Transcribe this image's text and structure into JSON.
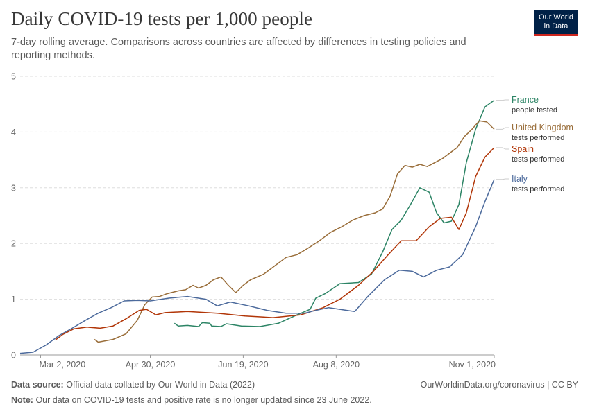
{
  "header": {
    "title": "Daily COVID-19 tests per 1,000 people",
    "subtitle": "7-day rolling average. Comparisons across countries are affected by differences in testing policies and reporting methods."
  },
  "logo": {
    "line1": "Our World",
    "line2": "in Data",
    "bg_color": "#002147",
    "accent_color": "#ce261e"
  },
  "footer": {
    "source_label": "Data source:",
    "source_text": "Official data collated by Our World in Data (2022)",
    "credit": "OurWorldinData.org/coronavirus | CC BY",
    "note_label": "Note:",
    "note_text": "Our data on COVID-19 tests and positive rate is no longer updated since 23 June 2022."
  },
  "chart_data": {
    "type": "line",
    "x_axis": {
      "type": "date",
      "range": [
        "2020-02-20",
        "2020-11-01"
      ],
      "ticks": [
        {
          "date": "2020-03-02",
          "label": "Mar 2, 2020"
        },
        {
          "date": "2020-04-30",
          "label": "Apr 30, 2020"
        },
        {
          "date": "2020-06-19",
          "label": "Jun 19, 2020"
        },
        {
          "date": "2020-08-08",
          "label": "Aug 8, 2020"
        },
        {
          "date": "2020-11-01",
          "label": "Nov 1, 2020"
        }
      ]
    },
    "y_axis": {
      "range": [
        0,
        5
      ],
      "ticks": [
        0,
        1,
        2,
        3,
        4,
        5
      ],
      "grid": true
    },
    "series": [
      {
        "name": "France",
        "sublabel": "people tested",
        "color": "#2c8465",
        "points": [
          [
            "2020-05-13",
            0.57
          ],
          [
            "2020-05-15",
            0.52
          ],
          [
            "2020-05-20",
            0.53
          ],
          [
            "2020-05-26",
            0.51
          ],
          [
            "2020-05-28",
            0.58
          ],
          [
            "2020-06-01",
            0.57
          ],
          [
            "2020-06-02",
            0.52
          ],
          [
            "2020-06-07",
            0.51
          ],
          [
            "2020-06-10",
            0.56
          ],
          [
            "2020-06-18",
            0.52
          ],
          [
            "2020-06-28",
            0.51
          ],
          [
            "2020-07-08",
            0.57
          ],
          [
            "2020-07-18",
            0.72
          ],
          [
            "2020-07-25",
            0.82
          ],
          [
            "2020-07-28",
            1.02
          ],
          [
            "2020-08-02",
            1.1
          ],
          [
            "2020-08-10",
            1.28
          ],
          [
            "2020-08-20",
            1.3
          ],
          [
            "2020-08-27",
            1.45
          ],
          [
            "2020-09-02",
            1.85
          ],
          [
            "2020-09-07",
            2.25
          ],
          [
            "2020-09-12",
            2.42
          ],
          [
            "2020-09-17",
            2.7
          ],
          [
            "2020-09-22",
            3.0
          ],
          [
            "2020-09-27",
            2.92
          ],
          [
            "2020-10-01",
            2.55
          ],
          [
            "2020-10-05",
            2.37
          ],
          [
            "2020-10-09",
            2.4
          ],
          [
            "2020-10-13",
            2.7
          ],
          [
            "2020-10-17",
            3.45
          ],
          [
            "2020-10-22",
            4.05
          ],
          [
            "2020-10-27",
            4.45
          ],
          [
            "2020-11-01",
            4.57
          ]
        ]
      },
      {
        "name": "United Kingdom",
        "sublabel": "tests performed",
        "color": "#996d39",
        "points": [
          [
            "2020-03-31",
            0.28
          ],
          [
            "2020-04-02",
            0.23
          ],
          [
            "2020-04-10",
            0.28
          ],
          [
            "2020-04-17",
            0.38
          ],
          [
            "2020-04-23",
            0.62
          ],
          [
            "2020-04-27",
            0.9
          ],
          [
            "2020-05-01",
            1.04
          ],
          [
            "2020-05-05",
            1.05
          ],
          [
            "2020-05-09",
            1.1
          ],
          [
            "2020-05-15",
            1.15
          ],
          [
            "2020-05-19",
            1.17
          ],
          [
            "2020-05-23",
            1.25
          ],
          [
            "2020-05-26",
            1.2
          ],
          [
            "2020-05-30",
            1.25
          ],
          [
            "2020-06-03",
            1.35
          ],
          [
            "2020-06-07",
            1.4
          ],
          [
            "2020-06-11",
            1.25
          ],
          [
            "2020-06-15",
            1.12
          ],
          [
            "2020-06-19",
            1.25
          ],
          [
            "2020-06-23",
            1.35
          ],
          [
            "2020-06-30",
            1.45
          ],
          [
            "2020-07-06",
            1.6
          ],
          [
            "2020-07-12",
            1.75
          ],
          [
            "2020-07-18",
            1.8
          ],
          [
            "2020-07-24",
            1.92
          ],
          [
            "2020-07-30",
            2.05
          ],
          [
            "2020-08-05",
            2.2
          ],
          [
            "2020-08-11",
            2.3
          ],
          [
            "2020-08-17",
            2.42
          ],
          [
            "2020-08-23",
            2.5
          ],
          [
            "2020-08-29",
            2.55
          ],
          [
            "2020-09-02",
            2.62
          ],
          [
            "2020-09-06",
            2.85
          ],
          [
            "2020-09-10",
            3.25
          ],
          [
            "2020-09-14",
            3.4
          ],
          [
            "2020-09-18",
            3.37
          ],
          [
            "2020-09-22",
            3.42
          ],
          [
            "2020-09-26",
            3.38
          ],
          [
            "2020-09-30",
            3.45
          ],
          [
            "2020-10-04",
            3.52
          ],
          [
            "2020-10-08",
            3.62
          ],
          [
            "2020-10-12",
            3.72
          ],
          [
            "2020-10-16",
            3.92
          ],
          [
            "2020-10-20",
            4.05
          ],
          [
            "2020-10-24",
            4.2
          ],
          [
            "2020-10-28",
            4.18
          ],
          [
            "2020-11-01",
            4.05
          ]
        ]
      },
      {
        "name": "Spain",
        "sublabel": "tests performed",
        "color": "#b13507",
        "points": [
          [
            "2020-03-10",
            0.27
          ],
          [
            "2020-03-14",
            0.37
          ],
          [
            "2020-03-20",
            0.47
          ],
          [
            "2020-03-27",
            0.5
          ],
          [
            "2020-04-03",
            0.48
          ],
          [
            "2020-04-10",
            0.52
          ],
          [
            "2020-04-17",
            0.65
          ],
          [
            "2020-04-24",
            0.8
          ],
          [
            "2020-04-28",
            0.82
          ],
          [
            "2020-05-03",
            0.72
          ],
          [
            "2020-05-08",
            0.76
          ],
          [
            "2020-05-20",
            0.78
          ],
          [
            "2020-06-05",
            0.75
          ],
          [
            "2020-06-20",
            0.7
          ],
          [
            "2020-07-05",
            0.67
          ],
          [
            "2020-07-20",
            0.72
          ],
          [
            "2020-08-01",
            0.85
          ],
          [
            "2020-08-10",
            1.0
          ],
          [
            "2020-08-20",
            1.25
          ],
          [
            "2020-08-28",
            1.5
          ],
          [
            "2020-09-05",
            1.8
          ],
          [
            "2020-09-12",
            2.05
          ],
          [
            "2020-09-20",
            2.05
          ],
          [
            "2020-09-27",
            2.3
          ],
          [
            "2020-10-03",
            2.45
          ],
          [
            "2020-10-09",
            2.47
          ],
          [
            "2020-10-13",
            2.25
          ],
          [
            "2020-10-17",
            2.55
          ],
          [
            "2020-10-22",
            3.2
          ],
          [
            "2020-10-27",
            3.55
          ],
          [
            "2020-11-01",
            3.72
          ]
        ]
      },
      {
        "name": "Italy",
        "sublabel": "tests performed",
        "color": "#4c6a9c",
        "points": [
          [
            "2020-02-20",
            0.03
          ],
          [
            "2020-02-27",
            0.05
          ],
          [
            "2020-03-05",
            0.18
          ],
          [
            "2020-03-12",
            0.35
          ],
          [
            "2020-03-19",
            0.48
          ],
          [
            "2020-03-26",
            0.62
          ],
          [
            "2020-04-02",
            0.75
          ],
          [
            "2020-04-09",
            0.85
          ],
          [
            "2020-04-16",
            0.97
          ],
          [
            "2020-04-23",
            0.98
          ],
          [
            "2020-04-30",
            0.97
          ],
          [
            "2020-05-10",
            1.02
          ],
          [
            "2020-05-20",
            1.05
          ],
          [
            "2020-05-30",
            1.0
          ],
          [
            "2020-06-05",
            0.88
          ],
          [
            "2020-06-12",
            0.95
          ],
          [
            "2020-06-22",
            0.88
          ],
          [
            "2020-07-02",
            0.8
          ],
          [
            "2020-07-12",
            0.75
          ],
          [
            "2020-07-22",
            0.75
          ],
          [
            "2020-07-28",
            0.8
          ],
          [
            "2020-08-04",
            0.85
          ],
          [
            "2020-08-10",
            0.82
          ],
          [
            "2020-08-18",
            0.78
          ],
          [
            "2020-08-25",
            1.05
          ],
          [
            "2020-09-03",
            1.35
          ],
          [
            "2020-09-11",
            1.52
          ],
          [
            "2020-09-18",
            1.5
          ],
          [
            "2020-09-24",
            1.4
          ],
          [
            "2020-10-01",
            1.52
          ],
          [
            "2020-10-08",
            1.58
          ],
          [
            "2020-10-15",
            1.8
          ],
          [
            "2020-10-22",
            2.3
          ],
          [
            "2020-10-27",
            2.75
          ],
          [
            "2020-11-01",
            3.15
          ]
        ]
      }
    ]
  }
}
